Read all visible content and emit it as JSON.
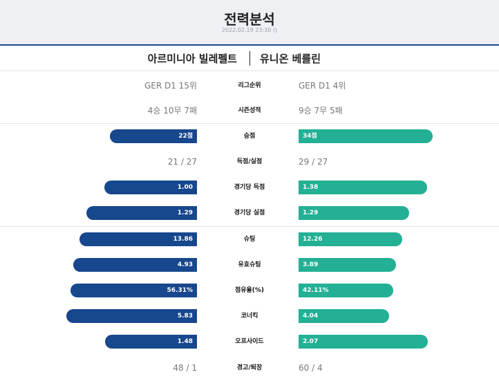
{
  "header": {
    "title": "전력분석",
    "datetime": "2022.02.19 23:30 ()"
  },
  "teams": {
    "home": "아르미니아 빌레펠트",
    "away": "유니온 베를린"
  },
  "colors": {
    "home_bar": "#17478c",
    "away_bar": "#23b095"
  },
  "stats": {
    "league_rank": {
      "label": "리그순위",
      "home": "GER D1 15위",
      "away": "GER D1 4위"
    },
    "season_record": {
      "label": "시즌성적",
      "home": "4승 10무 7패",
      "away": "9승 7무 5패"
    },
    "points": {
      "label": "승점",
      "home": "22점",
      "away": "34점",
      "home_pct": 0.393,
      "away_pct": 0.607
    },
    "goals": {
      "label": "득점/실점",
      "home": "21 / 27",
      "away": "29 / 27"
    },
    "goals_per_game": {
      "label": "경기당 득점",
      "home": "1.00",
      "away": "1.38",
      "home_pct": 0.42,
      "away_pct": 0.58
    },
    "conceded_per_game": {
      "label": "경기당 실점",
      "home": "1.29",
      "away": "1.29",
      "home_pct": 0.5,
      "away_pct": 0.5
    },
    "shots": {
      "label": "슈팅",
      "home": "13.86",
      "away": "12.26",
      "home_pct": 0.531,
      "away_pct": 0.469
    },
    "shots_on_target": {
      "label": "유효슈팅",
      "home": "4.93",
      "away": "3.89",
      "home_pct": 0.559,
      "away_pct": 0.441
    },
    "possession": {
      "label": "점유율(%)",
      "home": "56.31%",
      "away": "42.11%",
      "home_pct": 0.572,
      "away_pct": 0.428
    },
    "corners": {
      "label": "코너킥",
      "home": "5.83",
      "away": "4.04",
      "home_pct": 0.591,
      "away_pct": 0.409
    },
    "offsides": {
      "label": "오프사이드",
      "home": "1.48",
      "away": "2.07",
      "home_pct": 0.417,
      "away_pct": 0.583
    },
    "cards": {
      "label": "경고/퇴장",
      "home": "48 / 1",
      "away": "60 / 4"
    }
  }
}
